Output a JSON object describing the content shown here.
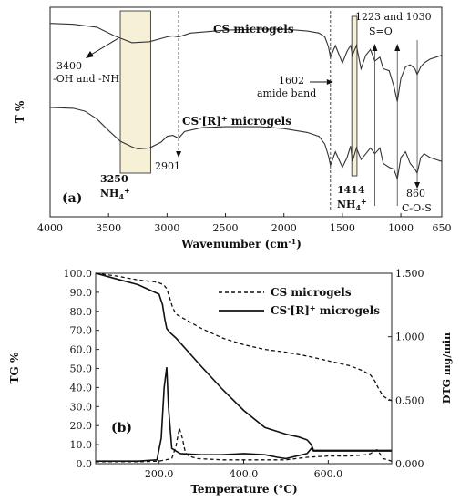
{
  "chart_data": [
    {
      "type": "line",
      "panel_label": "(a)",
      "xlabel": "Wavenumber (cm",
      "xlabel_sup": "-1",
      "xlabel_end": ")",
      "ylabel": "T %",
      "xlim": [
        4000,
        650
      ],
      "ylim": [
        0,
        100
      ],
      "x_ticks": [
        "4000",
        "3500",
        "3000",
        "2500",
        "2000",
        "1500",
        "1000",
        "650"
      ],
      "x_tick_values": [
        4000,
        3500,
        3000,
        2500,
        2000,
        1500,
        1000,
        650
      ],
      "series": [
        {
          "name": "CS microgels",
          "x": [
            4000,
            3800,
            3600,
            3450,
            3300,
            3150,
            3000,
            2950,
            2901,
            2800,
            2500,
            2200,
            2000,
            1800,
            1700,
            1650,
            1620,
            1602,
            1560,
            1500,
            1460,
            1430,
            1414,
            1380,
            1340,
            1300,
            1260,
            1223,
            1180,
            1150,
            1100,
            1060,
            1030,
            1000,
            960,
            920,
            880,
            860,
            830,
            800,
            750,
            700,
            650
          ],
          "y": [
            94.5,
            94.0,
            92.5,
            88.0,
            84.5,
            85.0,
            87.5,
            88.0,
            87.5,
            89.5,
            91.0,
            91.5,
            91.5,
            90.5,
            89.5,
            87.5,
            82.5,
            77.0,
            83.0,
            74.0,
            80.0,
            83.0,
            78.0,
            83.0,
            71.0,
            78.0,
            81.0,
            75.0,
            77.0,
            71.0,
            70.0,
            62.0,
            54.0,
            66.0,
            72.0,
            73.0,
            71.0,
            68.0,
            72.0,
            74.0,
            76.0,
            77.0,
            78.0
          ]
        },
        {
          "name": "CS[R] microgels",
          "x": [
            4000,
            3800,
            3700,
            3600,
            3500,
            3400,
            3300,
            3250,
            3150,
            3050,
            3000,
            2950,
            2901,
            2850,
            2700,
            2500,
            2200,
            2000,
            1800,
            1700,
            1650,
            1620,
            1602,
            1560,
            1500,
            1460,
            1430,
            1414,
            1380,
            1340,
            1300,
            1260,
            1223,
            1180,
            1150,
            1100,
            1060,
            1030,
            1000,
            960,
            920,
            880,
            860,
            830,
            800,
            750,
            700,
            650
          ],
          "y": [
            51.0,
            50.5,
            49.0,
            45.0,
            39.0,
            33.5,
            30.5,
            29.5,
            30.0,
            33.0,
            36.0,
            36.5,
            35.0,
            38.5,
            40.5,
            41.0,
            41.0,
            40.0,
            38.0,
            36.0,
            32.0,
            26.0,
            21.0,
            28.0,
            20.0,
            25.0,
            31.0,
            23.0,
            30.0,
            24.0,
            27.0,
            30.0,
            27.0,
            30.0,
            22.0,
            20.0,
            19.0,
            14.0,
            25.0,
            28.0,
            22.0,
            19.0,
            17.0,
            25.0,
            27.0,
            25.0,
            24.0,
            23.0
          ]
        }
      ],
      "series_labels": [
        "CS microgels",
        "CS",
        "-",
        "[R]",
        "+",
        " microgels"
      ],
      "annotations": {
        "oh_value": "3400",
        "oh_text": "-OH and -NH",
        "peak_2901": "2901",
        "amide_value": "1602",
        "amide_text": "amide band",
        "so_values": "1223 and 1030",
        "so_text": "S=O",
        "box1_value": "3250",
        "box1_text": "NH",
        "box1_sub": "4",
        "box1_sup": "+",
        "box2_value": "1414",
        "box2_text": "NH",
        "box2_sub": "4",
        "box2_sup": "+",
        "cos_value": "860",
        "cos_text": "C-O-S"
      },
      "highlight_ranges": [
        [
          3400,
          3140
        ],
        [
          1420,
          1375
        ]
      ],
      "highlight_color": "#f6f1d6"
    },
    {
      "type": "line",
      "panel_label": "(b)",
      "xlabel": "Temperature (",
      "xlabel_deg": "°C)",
      "ylabel_left": "TG %",
      "ylabel_right": "DTG mg/min",
      "xlim": [
        50,
        750
      ],
      "ylim_left": [
        0,
        100
      ],
      "ylim_right": [
        0,
        1.5
      ],
      "x_ticks": [
        "200.0",
        "400.0",
        "600.0"
      ],
      "x_tick_values": [
        200,
        400,
        600
      ],
      "y_ticks_left": [
        "0.0",
        "10.0",
        "20.0",
        "30.0",
        "40.0",
        "50.0",
        "60.0",
        "70.0",
        "80.0",
        "90.0",
        "100.0"
      ],
      "y_ticks_right": [
        "0.000",
        "0.500",
        "1.000",
        "1.500"
      ],
      "legend_position": "upper-right",
      "legend": {
        "cs": "CS microgels",
        "csr_a": "CS",
        "csr_sup1": "-",
        "csr_b": "[R]",
        "csr_sup2": "+",
        "csr_c": " microgels"
      },
      "series": [
        {
          "name": "CS microgels TG",
          "style": "dashed",
          "axis": "left",
          "x": [
            50,
            100,
            150,
            190,
            200,
            210,
            218,
            225,
            232,
            240,
            260,
            300,
            350,
            400,
            450,
            500,
            550,
            600,
            650,
            680,
            700,
            710,
            720,
            730,
            740,
            750
          ],
          "y": [
            100.0,
            98.5,
            96.5,
            95.5,
            95.0,
            94.0,
            92.0,
            87.0,
            82.0,
            78.5,
            76.0,
            71.0,
            66.0,
            62.5,
            60.0,
            58.5,
            56.5,
            54.0,
            51.5,
            49.0,
            46.5,
            43.5,
            39.0,
            35.5,
            34.0,
            33.0
          ]
        },
        {
          "name": "CS[R] microgels TG",
          "style": "solid",
          "axis": "left",
          "x": [
            50,
            100,
            150,
            200,
            208,
            213,
            218,
            225,
            240,
            300,
            350,
            400,
            450,
            500,
            530,
            550,
            560,
            565,
            600,
            700,
            750
          ],
          "y": [
            100.0,
            97.0,
            94.0,
            89.0,
            83.5,
            76.5,
            71.0,
            69.0,
            66.0,
            51.0,
            39.0,
            28.0,
            19.0,
            15.5,
            14.0,
            12.5,
            10.0,
            7.0,
            7.0,
            7.0,
            7.0
          ]
        },
        {
          "name": "CS microgels DTG",
          "style": "dashed",
          "axis": "right",
          "x": [
            50,
            150,
            200,
            230,
            240,
            248,
            255,
            262,
            270,
            290,
            350,
            400,
            450,
            500,
            550,
            600,
            650,
            690,
            700,
            710,
            715,
            720,
            730,
            750
          ],
          "y": [
            0.015,
            0.015,
            0.02,
            0.04,
            0.14,
            0.28,
            0.2,
            0.09,
            0.06,
            0.04,
            0.03,
            0.03,
            0.03,
            0.03,
            0.05,
            0.06,
            0.06,
            0.07,
            0.08,
            0.1,
            0.11,
            0.09,
            0.04,
            0.02
          ]
        },
        {
          "name": "CS[R] microgels DTG",
          "style": "solid",
          "axis": "right",
          "x": [
            50,
            150,
            195,
            205,
            212,
            218,
            222,
            230,
            250,
            300,
            350,
            400,
            450,
            480,
            500,
            550,
            560,
            565,
            600,
            700,
            750
          ],
          "y": [
            0.02,
            0.02,
            0.03,
            0.2,
            0.6,
            0.76,
            0.45,
            0.12,
            0.08,
            0.07,
            0.07,
            0.08,
            0.07,
            0.05,
            0.04,
            0.08,
            0.12,
            0.1,
            0.1,
            0.1,
            0.1
          ]
        }
      ]
    }
  ]
}
